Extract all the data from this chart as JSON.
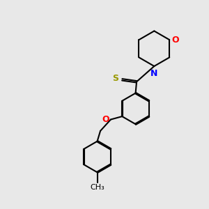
{
  "background_color": "#e8e8e8",
  "bond_color": "#000000",
  "line_width": 1.5,
  "atom_colors": {
    "O": "#ff0000",
    "N": "#0000ff",
    "S": "#999900",
    "C": "#000000"
  },
  "font_size": 9
}
